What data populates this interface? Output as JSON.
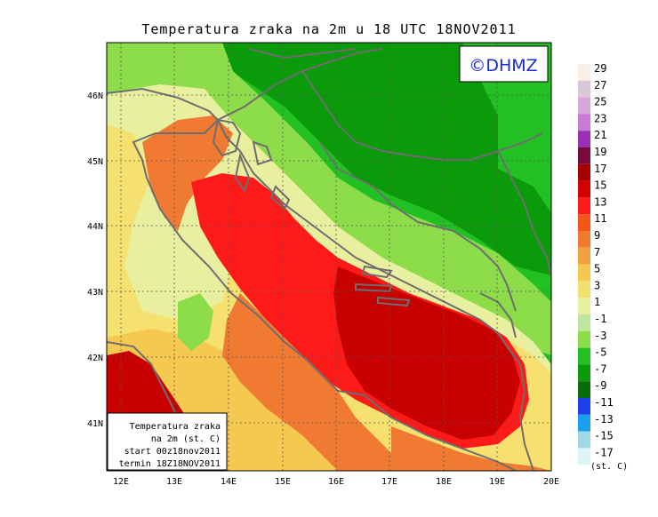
{
  "title": "Temperatura zraka na 2m u 18 UTC 18NOV2011",
  "logo": "©DHMZ",
  "lat_labels": [
    "46N",
    "45N",
    "44N",
    "43N",
    "42N",
    "41N"
  ],
  "lon_labels": [
    "12E",
    "13E",
    "14E",
    "15E",
    "16E",
    "17E",
    "18E",
    "19E",
    "20E"
  ],
  "info_box": {
    "line1": "Temperatura zraka",
    "line2": "na 2m (st. C)",
    "line3": "start 00z18nov2011",
    "line4": "termin 18Z18NOV2011"
  },
  "legend": {
    "unit": "(st. C)",
    "levels": [
      {
        "label": "29",
        "color": "#fbeee6"
      },
      {
        "label": "27",
        "color": "#dcc7d7"
      },
      {
        "label": "25",
        "color": "#d8a6d8"
      },
      {
        "label": "23",
        "color": "#c77bd2"
      },
      {
        "label": "21",
        "color": "#9a30b4"
      },
      {
        "label": "19",
        "color": "#7a0a3a"
      },
      {
        "label": "17",
        "color": "#a50000"
      },
      {
        "label": "15",
        "color": "#d40000"
      },
      {
        "label": "13",
        "color": "#ff1a1a"
      },
      {
        "label": "11",
        "color": "#f5541a"
      },
      {
        "label": "9",
        "color": "#f07a32"
      },
      {
        "label": "7",
        "color": "#f0a040"
      },
      {
        "label": "5",
        "color": "#f5c850"
      },
      {
        "label": "3",
        "color": "#f0e070"
      },
      {
        "label": "1",
        "color": "#e8f0a0"
      },
      {
        "label": "-1",
        "color": "#bfe6a0"
      },
      {
        "label": "-3",
        "color": "#8ddc4a"
      },
      {
        "label": "-5",
        "color": "#22c022"
      },
      {
        "label": "-7",
        "color": "#0a9a0a"
      },
      {
        "label": "-9",
        "color": "#0a6a0a"
      },
      {
        "label": "-11",
        "color": "#2040f0"
      },
      {
        "label": "-13",
        "color": "#1aa0f0"
      },
      {
        "label": "-15",
        "color": "#a0d8e8"
      },
      {
        "label": "-17",
        "color": "#e0f4f8"
      }
    ]
  },
  "palette": {
    "dark_green": "#0aa00a",
    "green": "#22c022",
    "light_green": "#8ddc4a",
    "pale": "#e8f0a0",
    "yellow": "#f5e070",
    "gold": "#f5c850",
    "orange": "#f07a32",
    "red": "#ff1a1a",
    "dark_red": "#c80000",
    "border": "#6e6e6e"
  }
}
